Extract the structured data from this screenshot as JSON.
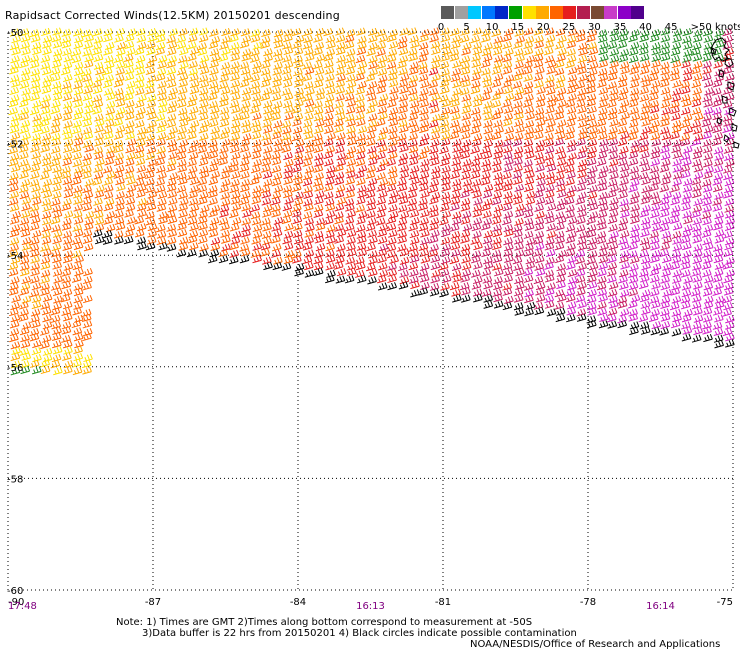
{
  "title": "Rapidsact Corrected Winds(12.5KM) 20150201 descending",
  "legend": {
    "labels": [
      "0",
      "5",
      "10",
      "15",
      "20",
      "25",
      "30",
      "35",
      "40",
      "45",
      ">50 knots"
    ],
    "colors": [
      "#5a5a5a",
      "#a0a0a0",
      "#00c8ff",
      "#0078ff",
      "#0028c8",
      "#00a000",
      "#ffe100",
      "#ffaa00",
      "#ff6400",
      "#e61e1e",
      "#b41e50",
      "#7a4a32",
      "#c83cc8",
      "#8c00c8",
      "#50008c"
    ]
  },
  "map": {
    "lat_labels": [
      "-50",
      "-52",
      "-54",
      "-56",
      "-58",
      "-60"
    ],
    "lon_labels": [
      "-90",
      "-87",
      "-84",
      "-81",
      "-78",
      "-75"
    ],
    "lon_range": [
      -90,
      -75
    ],
    "lat_range": [
      -50,
      -60
    ],
    "time_labels": [
      "17:48",
      "16:13",
      "16:14"
    ],
    "time_color": "#800080",
    "grid": "dotted",
    "barb_colors": {
      "calm": "#000000",
      "light": "#228b22",
      "moderate": "#ffe100",
      "fresh": "#ffaa00",
      "strong": "#ff6400",
      "gale": "#e61e1e",
      "storm": "#c81e64",
      "extreme": "#d21ec8"
    }
  },
  "notes": {
    "line1": "Note: 1) Times are GMT 2)Times along bottom correspond to measurement at -50S",
    "line2": "3)Data buffer is 22 hrs from 20150201 4) Black circles indicate possible contamination",
    "credit": "NOAA/NESDIS/Office of Research and Applications"
  }
}
